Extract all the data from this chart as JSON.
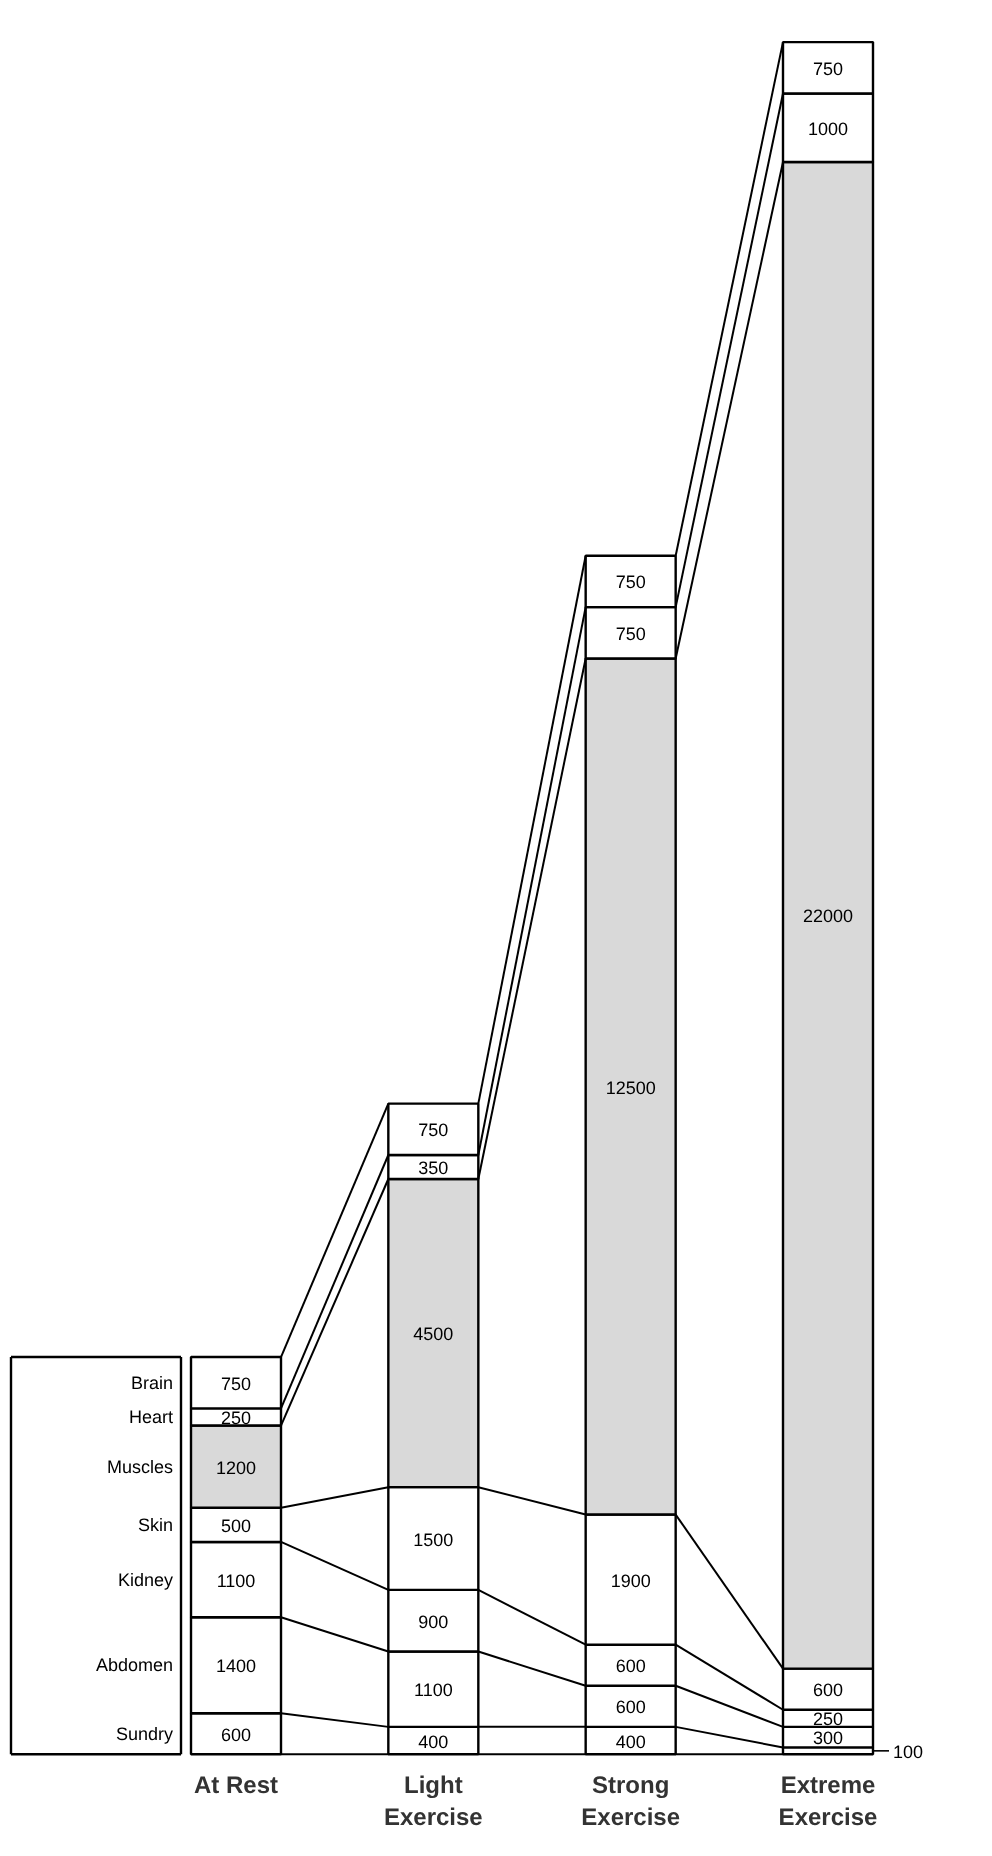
{
  "chart_data": {
    "type": "bar",
    "stacked": true,
    "data_labels": true,
    "legend": "left",
    "tick_labels": "x",
    "categories": [
      "At Rest",
      "Light Exercise",
      "Strong Exercise",
      "Extreme Exercise"
    ],
    "series": [
      {
        "name": "Sundry",
        "color": "#ffffff",
        "values": [
          600,
          400,
          400,
          100
        ]
      },
      {
        "name": "Abdomen",
        "color": "#ffffff",
        "values": [
          1400,
          1100,
          600,
          300
        ]
      },
      {
        "name": "Kidney",
        "color": "#ffffff",
        "values": [
          1100,
          900,
          600,
          250
        ]
      },
      {
        "name": "Skin",
        "color": "#ffffff",
        "values": [
          500,
          1500,
          1900,
          600
        ]
      },
      {
        "name": "Muscles",
        "color": "#d9d9d9",
        "values": [
          1200,
          4500,
          12500,
          22000
        ]
      },
      {
        "name": "Heart",
        "color": "#ffffff",
        "values": [
          250,
          350,
          750,
          1000
        ]
      },
      {
        "name": "Brain",
        "color": "#ffffff",
        "values": [
          750,
          750,
          750,
          750
        ]
      }
    ]
  }
}
